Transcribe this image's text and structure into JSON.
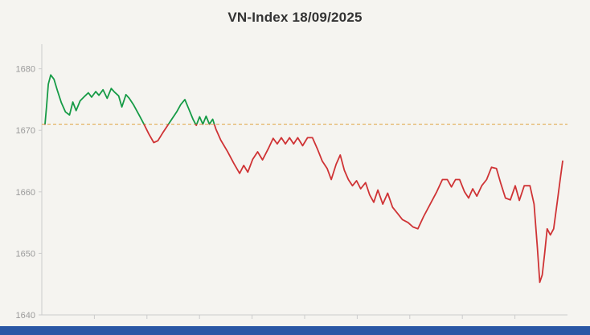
{
  "widget": {
    "title": "VN-Index 18/09/2025"
  },
  "style": {
    "background": "#f5f4f0",
    "title_color": "#333333",
    "footer_color": "#2a57a5",
    "axis_color": "#cccccc",
    "tick_label_color": "#9a9a9a",
    "line_color_above_reference": "#169b46",
    "line_color_below_reference": "#cf3335",
    "reference_line_color": "#dfa13e"
  },
  "chart_data": {
    "type": "line",
    "title": "VN-Index 18/09/2025",
    "xlabel": "",
    "ylabel": "",
    "ylim": [
      1640,
      1684
    ],
    "yticks": [
      1640,
      1650,
      1660,
      1670,
      1680
    ],
    "xtick_count": 9,
    "x_tick_labels_visible": false,
    "grid": false,
    "legend": "none",
    "reference_value": 1671,
    "reference_style": "dashed",
    "series": [
      {
        "name": "VN-Index",
        "points": [
          [
            55,
            1671
          ],
          [
            57,
            1674
          ],
          [
            59,
            1677.5
          ],
          [
            62,
            1679
          ],
          [
            66,
            1678.3
          ],
          [
            70,
            1676.5
          ],
          [
            75,
            1674.5
          ],
          [
            80,
            1673
          ],
          [
            85,
            1672.5
          ],
          [
            89,
            1674.6
          ],
          [
            93,
            1673.2
          ],
          [
            98,
            1674.8
          ],
          [
            104,
            1675.6
          ],
          [
            108,
            1676.1
          ],
          [
            112,
            1675.4
          ],
          [
            117,
            1676.3
          ],
          [
            121,
            1675.7
          ],
          [
            126,
            1676.6
          ],
          [
            131,
            1675.2
          ],
          [
            136,
            1676.8
          ],
          [
            140,
            1676.2
          ],
          [
            145,
            1675.6
          ],
          [
            149,
            1673.8
          ],
          [
            154,
            1675.8
          ],
          [
            158,
            1675.2
          ],
          [
            163,
            1674.2
          ],
          [
            170,
            1672.5
          ],
          [
            176,
            1671
          ],
          [
            182,
            1669.4
          ],
          [
            188,
            1668
          ],
          [
            193,
            1668.3
          ],
          [
            199,
            1669.6
          ],
          [
            204,
            1670.6
          ],
          [
            210,
            1671.8
          ],
          [
            216,
            1673
          ],
          [
            221,
            1674.2
          ],
          [
            226,
            1675
          ],
          [
            231,
            1673.4
          ],
          [
            236,
            1671.8
          ],
          [
            240,
            1670.8
          ],
          [
            244,
            1672.2
          ],
          [
            248,
            1671
          ],
          [
            252,
            1672.3
          ],
          [
            256,
            1671
          ],
          [
            260,
            1671.8
          ],
          [
            264,
            1670.2
          ],
          [
            270,
            1668.4
          ],
          [
            278,
            1666.6
          ],
          [
            286,
            1664.6
          ],
          [
            293,
            1663
          ],
          [
            298,
            1664.3
          ],
          [
            303,
            1663.2
          ],
          [
            309,
            1665.3
          ],
          [
            315,
            1666.5
          ],
          [
            321,
            1665.2
          ],
          [
            328,
            1667
          ],
          [
            334,
            1668.7
          ],
          [
            339,
            1667.8
          ],
          [
            344,
            1668.8
          ],
          [
            349,
            1667.8
          ],
          [
            354,
            1668.8
          ],
          [
            359,
            1667.8
          ],
          [
            364,
            1668.8
          ],
          [
            370,
            1667.5
          ],
          [
            376,
            1668.8
          ],
          [
            382,
            1668.8
          ],
          [
            388,
            1667
          ],
          [
            394,
            1665
          ],
          [
            400,
            1663.8
          ],
          [
            405,
            1662
          ],
          [
            411,
            1664.5
          ],
          [
            416,
            1666
          ],
          [
            421,
            1663.5
          ],
          [
            426,
            1662
          ],
          [
            431,
            1661
          ],
          [
            436,
            1661.8
          ],
          [
            441,
            1660.5
          ],
          [
            447,
            1661.5
          ],
          [
            452,
            1659.5
          ],
          [
            457,
            1658.3
          ],
          [
            462,
            1660.3
          ],
          [
            468,
            1658
          ],
          [
            474,
            1659.8
          ],
          [
            480,
            1657.5
          ],
          [
            486,
            1656.5
          ],
          [
            492,
            1655.5
          ],
          [
            499,
            1655
          ],
          [
            505,
            1654.3
          ],
          [
            511,
            1654
          ],
          [
            518,
            1656
          ],
          [
            526,
            1658
          ],
          [
            534,
            1660
          ],
          [
            541,
            1662
          ],
          [
            547,
            1662
          ],
          [
            552,
            1660.8
          ],
          [
            557,
            1662
          ],
          [
            562,
            1662
          ],
          [
            568,
            1660
          ],
          [
            573,
            1659
          ],
          [
            578,
            1660.5
          ],
          [
            583,
            1659.3
          ],
          [
            589,
            1661
          ],
          [
            595,
            1662
          ],
          [
            601,
            1664
          ],
          [
            607,
            1663.8
          ],
          [
            612,
            1661.5
          ],
          [
            618,
            1659
          ],
          [
            624,
            1658.7
          ],
          [
            630,
            1661
          ],
          [
            635,
            1658.6
          ],
          [
            641,
            1661
          ],
          [
            648,
            1661
          ],
          [
            653,
            1658
          ],
          [
            657,
            1651
          ],
          [
            660,
            1645.3
          ],
          [
            663,
            1646.5
          ],
          [
            666,
            1650
          ],
          [
            669,
            1654
          ],
          [
            673,
            1653
          ],
          [
            677,
            1654
          ],
          [
            681,
            1658
          ],
          [
            685,
            1662
          ],
          [
            688,
            1665
          ]
        ]
      }
    ]
  }
}
